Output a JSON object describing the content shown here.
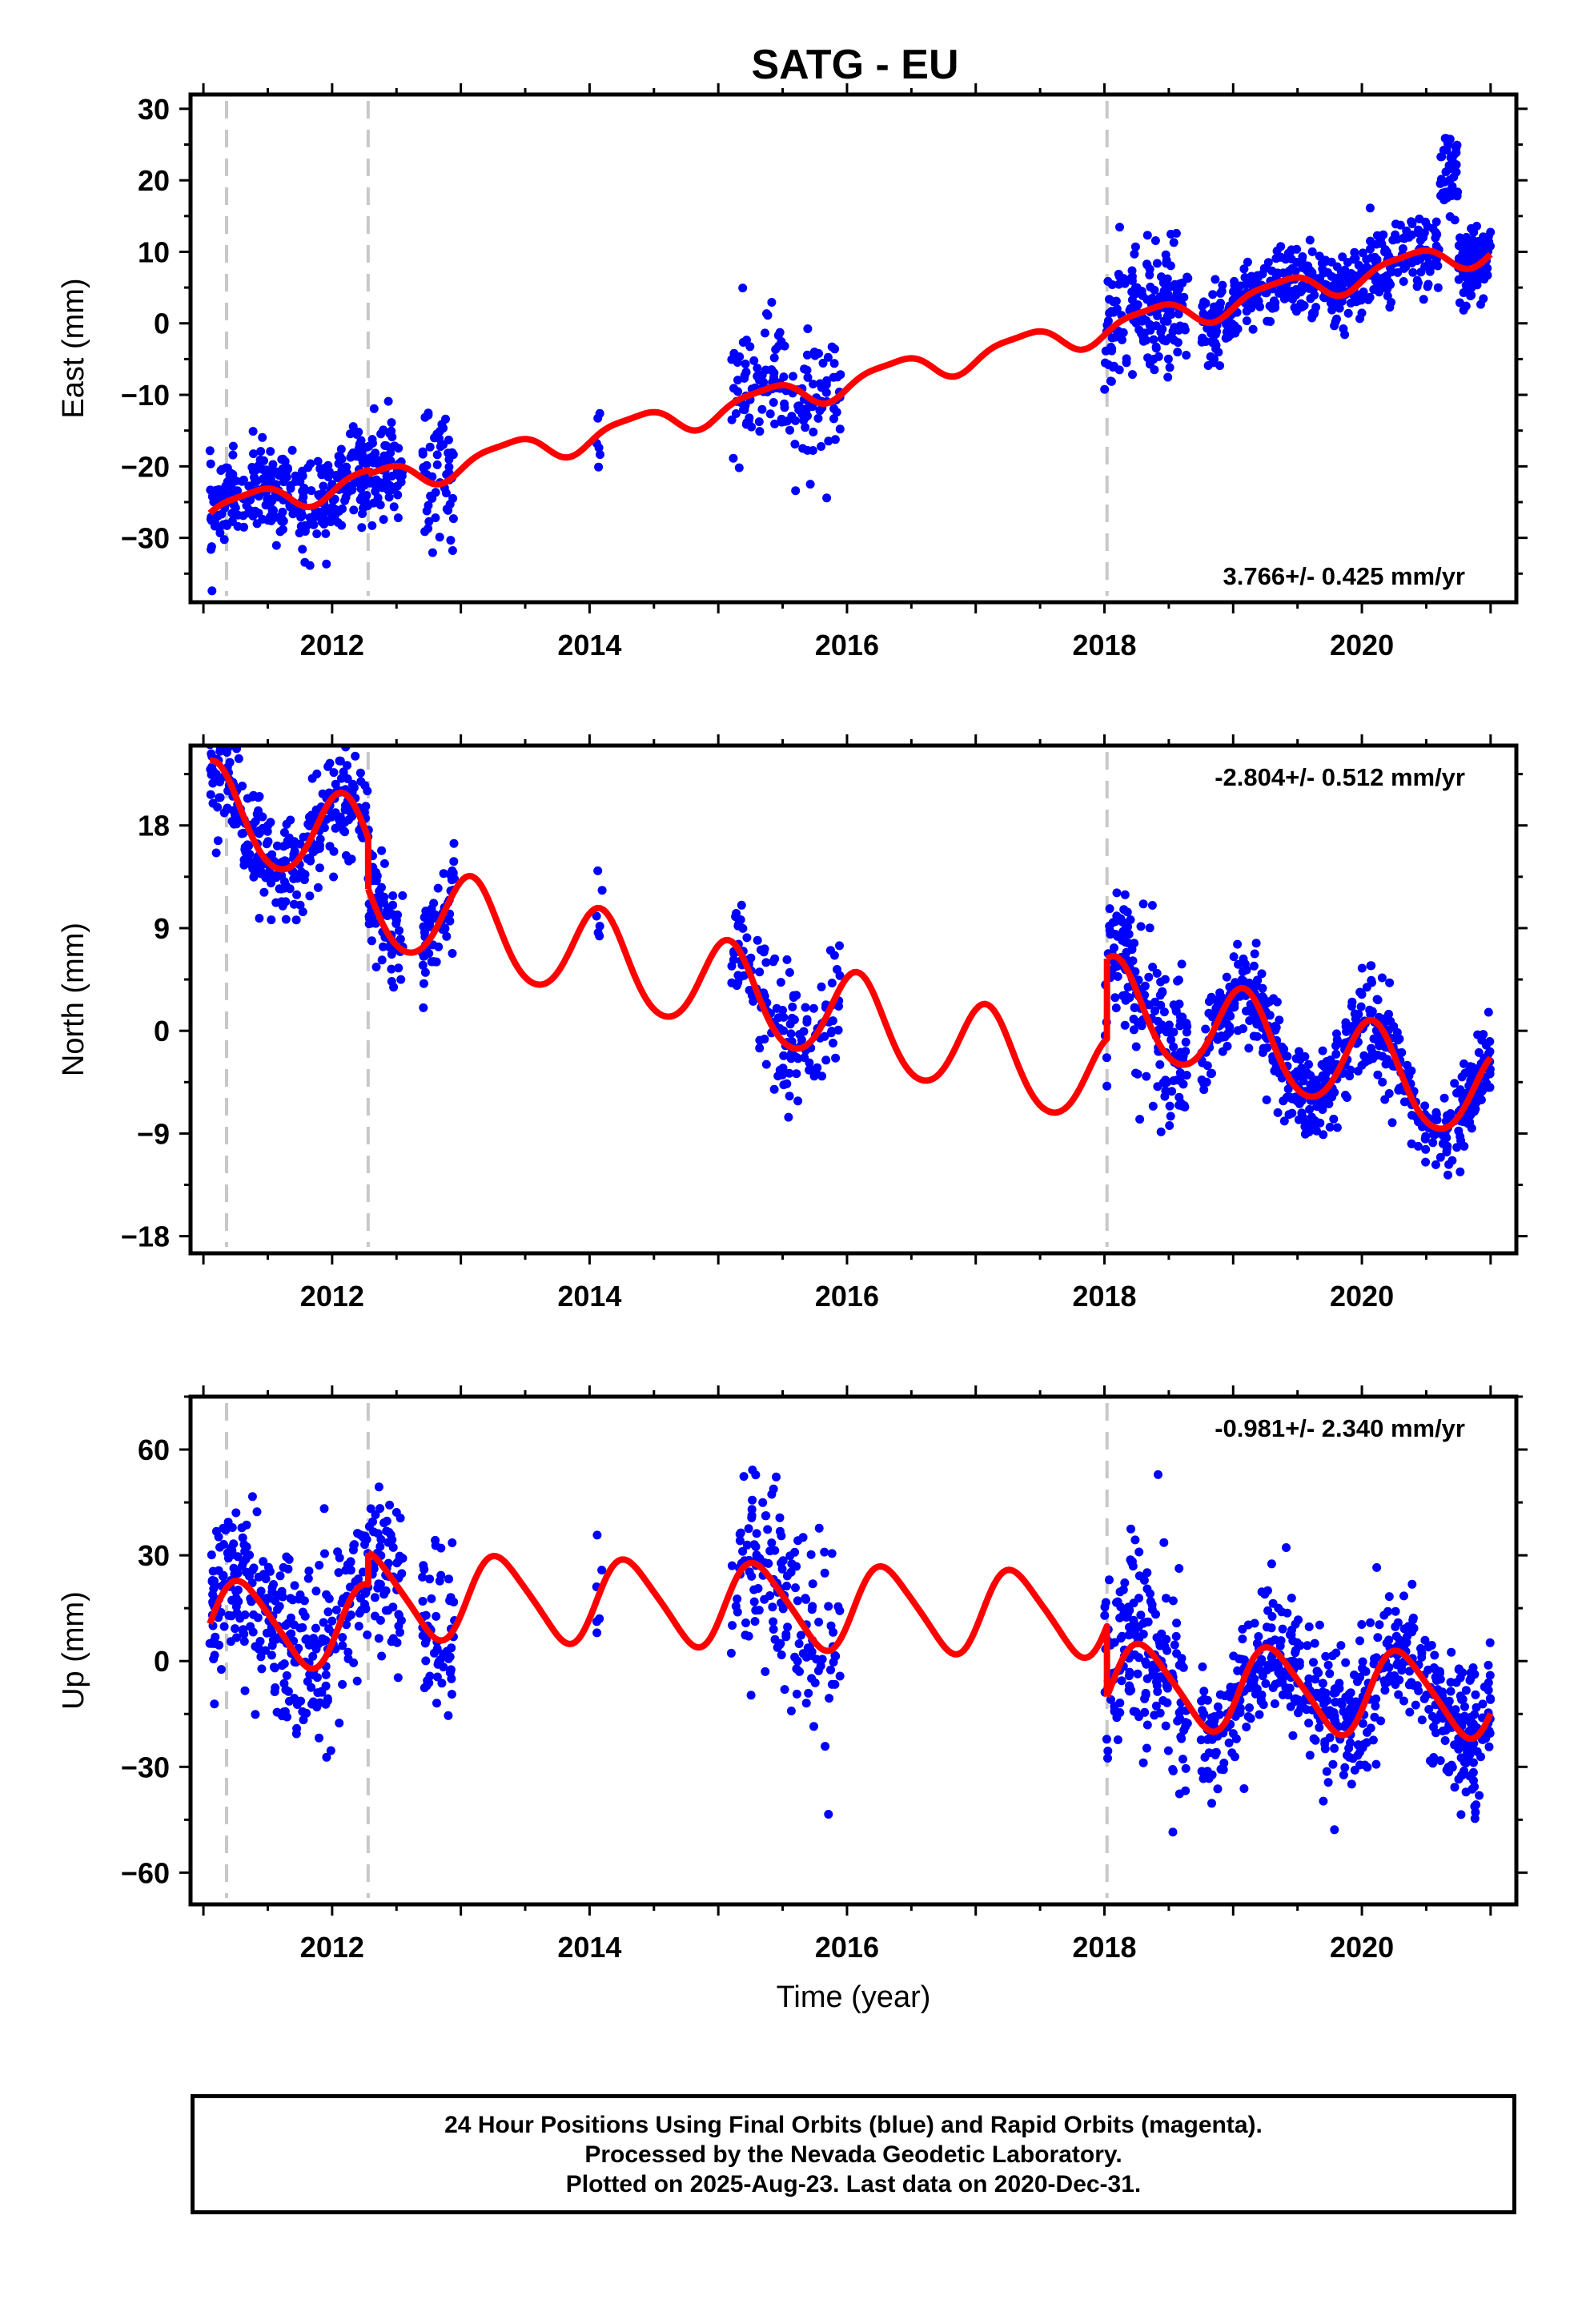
{
  "title": "SATG - EU",
  "footer": {
    "lines": [
      "24 Hour Positions Using Final Orbits (blue) and Rapid Orbits (magenta).",
      "Processed by the Nevada Geodetic Laboratory.",
      "Plotted on 2025-Aug-23. Last data on 2020-Dec-31."
    ]
  },
  "colors": {
    "points": "#0000ff",
    "model": "#ff0000",
    "breaks": "#c8c8c8",
    "frame": "#000000"
  },
  "chart_data": [
    {
      "type": "scatter",
      "component": "East",
      "ylabel": "East (mm)",
      "xlabel": "",
      "xlim": [
        2010.9,
        2021.2
      ],
      "ylim": [
        -39,
        32
      ],
      "yticks": [
        -30,
        -20,
        -10,
        0,
        10,
        20,
        30
      ],
      "xticks": [
        2012,
        2014,
        2016,
        2018,
        2020
      ],
      "rate_label": "3.766+/- 0.425 mm/yr",
      "rate_position": "bottom-right",
      "break_lines": [
        2011.18,
        2012.28,
        2018.02
      ],
      "model": {
        "offset_at_2011_0": -26.5,
        "rate": 3.766,
        "ann_sin": 1.4,
        "ann_cos": -1.2,
        "semi_sin": 0.4,
        "semi_cos": 0.3,
        "offsets": [
          [
            2012.28,
            -0.6
          ],
          [
            2018.02,
            0.0
          ]
        ],
        "points": 420
      },
      "scatter_segments": [
        {
          "start": 2011.05,
          "end": 2012.55,
          "n": 380,
          "noise": 3.2,
          "spikes": []
        },
        {
          "start": 2012.7,
          "end": 2012.95,
          "n": 60,
          "noise": 4.0,
          "spikes": []
        },
        {
          "start": 2014.05,
          "end": 2014.1,
          "n": 6,
          "noise": 2.5,
          "spikes": []
        },
        {
          "start": 2015.1,
          "end": 2015.95,
          "n": 150,
          "noise": 5.0,
          "spikes": []
        },
        {
          "start": 2018.0,
          "end": 2018.65,
          "n": 180,
          "noise": 4.2,
          "spikes": []
        },
        {
          "start": 2018.75,
          "end": 2020.9,
          "n": 520,
          "noise": 2.6,
          "spikes": [
            [
              2020.6,
              2020.75,
              16
            ]
          ]
        },
        {
          "start": 2020.75,
          "end": 2021.0,
          "n": 70,
          "noise": 2.2,
          "spikes": []
        }
      ]
    },
    {
      "type": "scatter",
      "component": "North",
      "ylabel": "North (mm)",
      "xlabel": "",
      "xlim": [
        2010.9,
        2021.2
      ],
      "ylim": [
        -19.5,
        25
      ],
      "yticks": [
        -18,
        -9,
        0,
        9,
        18
      ],
      "xticks": [
        2012,
        2014,
        2016,
        2018,
        2020
      ],
      "rate_label": "-2.804+/- 0.512 mm/yr",
      "rate_position": "top-right",
      "break_lines": [
        2011.18,
        2012.28,
        2018.02
      ],
      "model": {
        "offset_at_2011_0": 19.5,
        "rate": -2.804,
        "ann_sin": 2.0,
        "ann_cos": 3.5,
        "semi_sin": 0.3,
        "semi_cos": 0.2,
        "offsets": [
          [
            2012.28,
            -4.5
          ],
          [
            2018.02,
            7.0
          ]
        ],
        "points": 420
      },
      "scatter_segments": [
        {
          "start": 2011.05,
          "end": 2012.55,
          "n": 380,
          "noise": 2.4,
          "spikes": []
        },
        {
          "start": 2012.7,
          "end": 2012.95,
          "n": 60,
          "noise": 2.2,
          "spikes": []
        },
        {
          "start": 2014.05,
          "end": 2014.1,
          "n": 6,
          "noise": 2.0,
          "spikes": []
        },
        {
          "start": 2015.1,
          "end": 2015.95,
          "n": 150,
          "noise": 3.0,
          "spikes": []
        },
        {
          "start": 2018.0,
          "end": 2018.65,
          "n": 180,
          "noise": 3.5,
          "spikes": []
        },
        {
          "start": 2018.75,
          "end": 2020.9,
          "n": 520,
          "noise": 1.9,
          "spikes": []
        },
        {
          "start": 2020.75,
          "end": 2021.0,
          "n": 70,
          "noise": 1.6,
          "spikes": []
        }
      ]
    },
    {
      "type": "scatter",
      "component": "Up",
      "ylabel": "Up (mm)",
      "xlabel": "Time (year)",
      "xlim": [
        2010.9,
        2021.2
      ],
      "ylim": [
        -69,
        75
      ],
      "yticks": [
        -60,
        -30,
        0,
        30,
        60
      ],
      "xticks": [
        2012,
        2014,
        2016,
        2018,
        2020
      ],
      "rate_label": "-0.981+/- 2.340 mm/yr",
      "rate_position": "top-right",
      "break_lines": [
        2011.18,
        2012.28,
        2018.02
      ],
      "model": {
        "offset_at_2011_0": 11.0,
        "rate": -0.981,
        "ann_sin": 11.0,
        "ann_cos": -4.0,
        "semi_sin": 1.5,
        "semi_cos": -1.0,
        "offsets": [
          [
            2012.28,
            9.0
          ],
          [
            2018.02,
            -20.0
          ]
        ],
        "points": 420
      },
      "scatter_segments": [
        {
          "start": 2011.05,
          "end": 2012.55,
          "n": 380,
          "noise": 12,
          "spikes": []
        },
        {
          "start": 2012.7,
          "end": 2012.95,
          "n": 60,
          "noise": 12,
          "spikes": []
        },
        {
          "start": 2014.05,
          "end": 2014.1,
          "n": 6,
          "noise": 12,
          "spikes": []
        },
        {
          "start": 2015.1,
          "end": 2015.95,
          "n": 150,
          "noise": 15,
          "spikes": []
        },
        {
          "start": 2018.0,
          "end": 2018.65,
          "n": 180,
          "noise": 14,
          "spikes": []
        },
        {
          "start": 2018.75,
          "end": 2020.9,
          "n": 520,
          "noise": 10,
          "spikes": []
        },
        {
          "start": 2020.75,
          "end": 2021.0,
          "n": 70,
          "noise": 9,
          "spikes": []
        }
      ]
    }
  ]
}
